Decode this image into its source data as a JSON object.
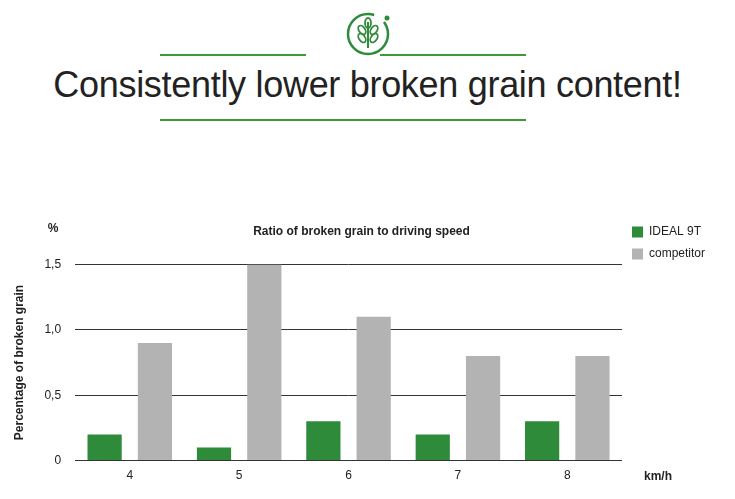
{
  "header": {
    "title": "Consistently lower broken grain content!"
  },
  "chart_data": {
    "type": "bar",
    "title": "Ratio of broken grain to driving speed",
    "x_label": "km/h",
    "y_label": "Percentage of broken grain",
    "y_unit": "%",
    "categories": [
      "4",
      "5",
      "6",
      "7",
      "8"
    ],
    "series": [
      {
        "name": "IDEAL 9T",
        "color": "#2e8b3a",
        "values": [
          0.2,
          0.1,
          0.3,
          0.2,
          0.3
        ]
      },
      {
        "name": "competitor",
        "color": "#b3b3b3",
        "values": [
          0.9,
          1.5,
          1.1,
          0.8,
          0.8
        ]
      }
    ],
    "ylim": [
      0,
      1.5
    ],
    "yticks": [
      0,
      {
        "value": 0.5,
        "label": "0,5"
      },
      {
        "value": 1.0,
        "label": "1,0"
      },
      {
        "value": 1.5,
        "label": "1,5"
      }
    ],
    "grid": "y",
    "legend": "right"
  }
}
